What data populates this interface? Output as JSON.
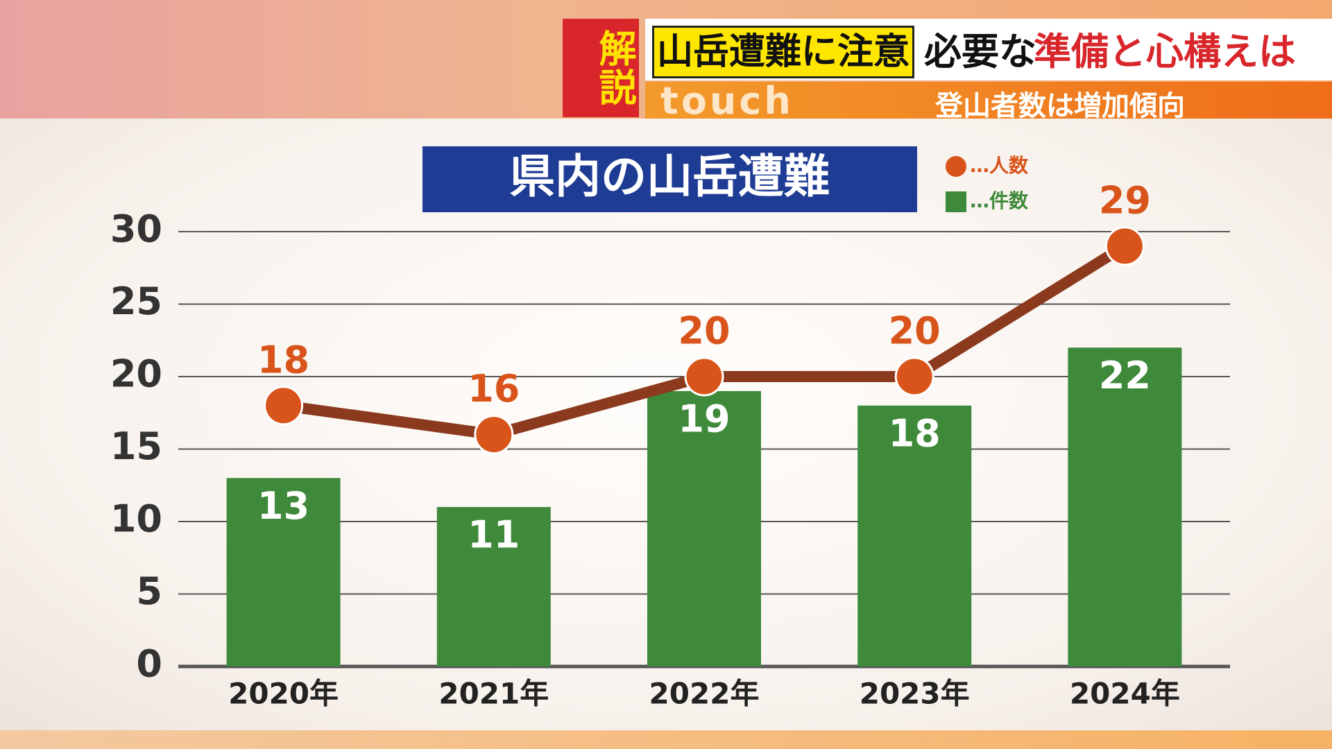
{
  "header": {
    "badge": "解説",
    "headline_part1": "山岳遭難に注意",
    "headline_part2": "必要な",
    "headline_part3": "準備と心構えは",
    "program": "touch",
    "subtitle": "登山者数は増加傾向"
  },
  "chart_data": {
    "type": "combo",
    "title": "県内の山岳遭難",
    "categories": [
      "2020年",
      "2021年",
      "2022年",
      "2023年",
      "2024年"
    ],
    "series": [
      {
        "name": "…人数",
        "type": "line",
        "color": "#d9541a",
        "line_color": "#8b3a1e",
        "values": [
          18,
          16,
          20,
          20,
          29
        ]
      },
      {
        "name": "…件数",
        "type": "bar",
        "color": "#3f8a3a",
        "values": [
          13,
          11,
          19,
          18,
          22
        ]
      }
    ],
    "ylim": [
      0,
      30
    ],
    "yticks": [
      0,
      5,
      10,
      15,
      20,
      25,
      30
    ],
    "grid": true
  }
}
